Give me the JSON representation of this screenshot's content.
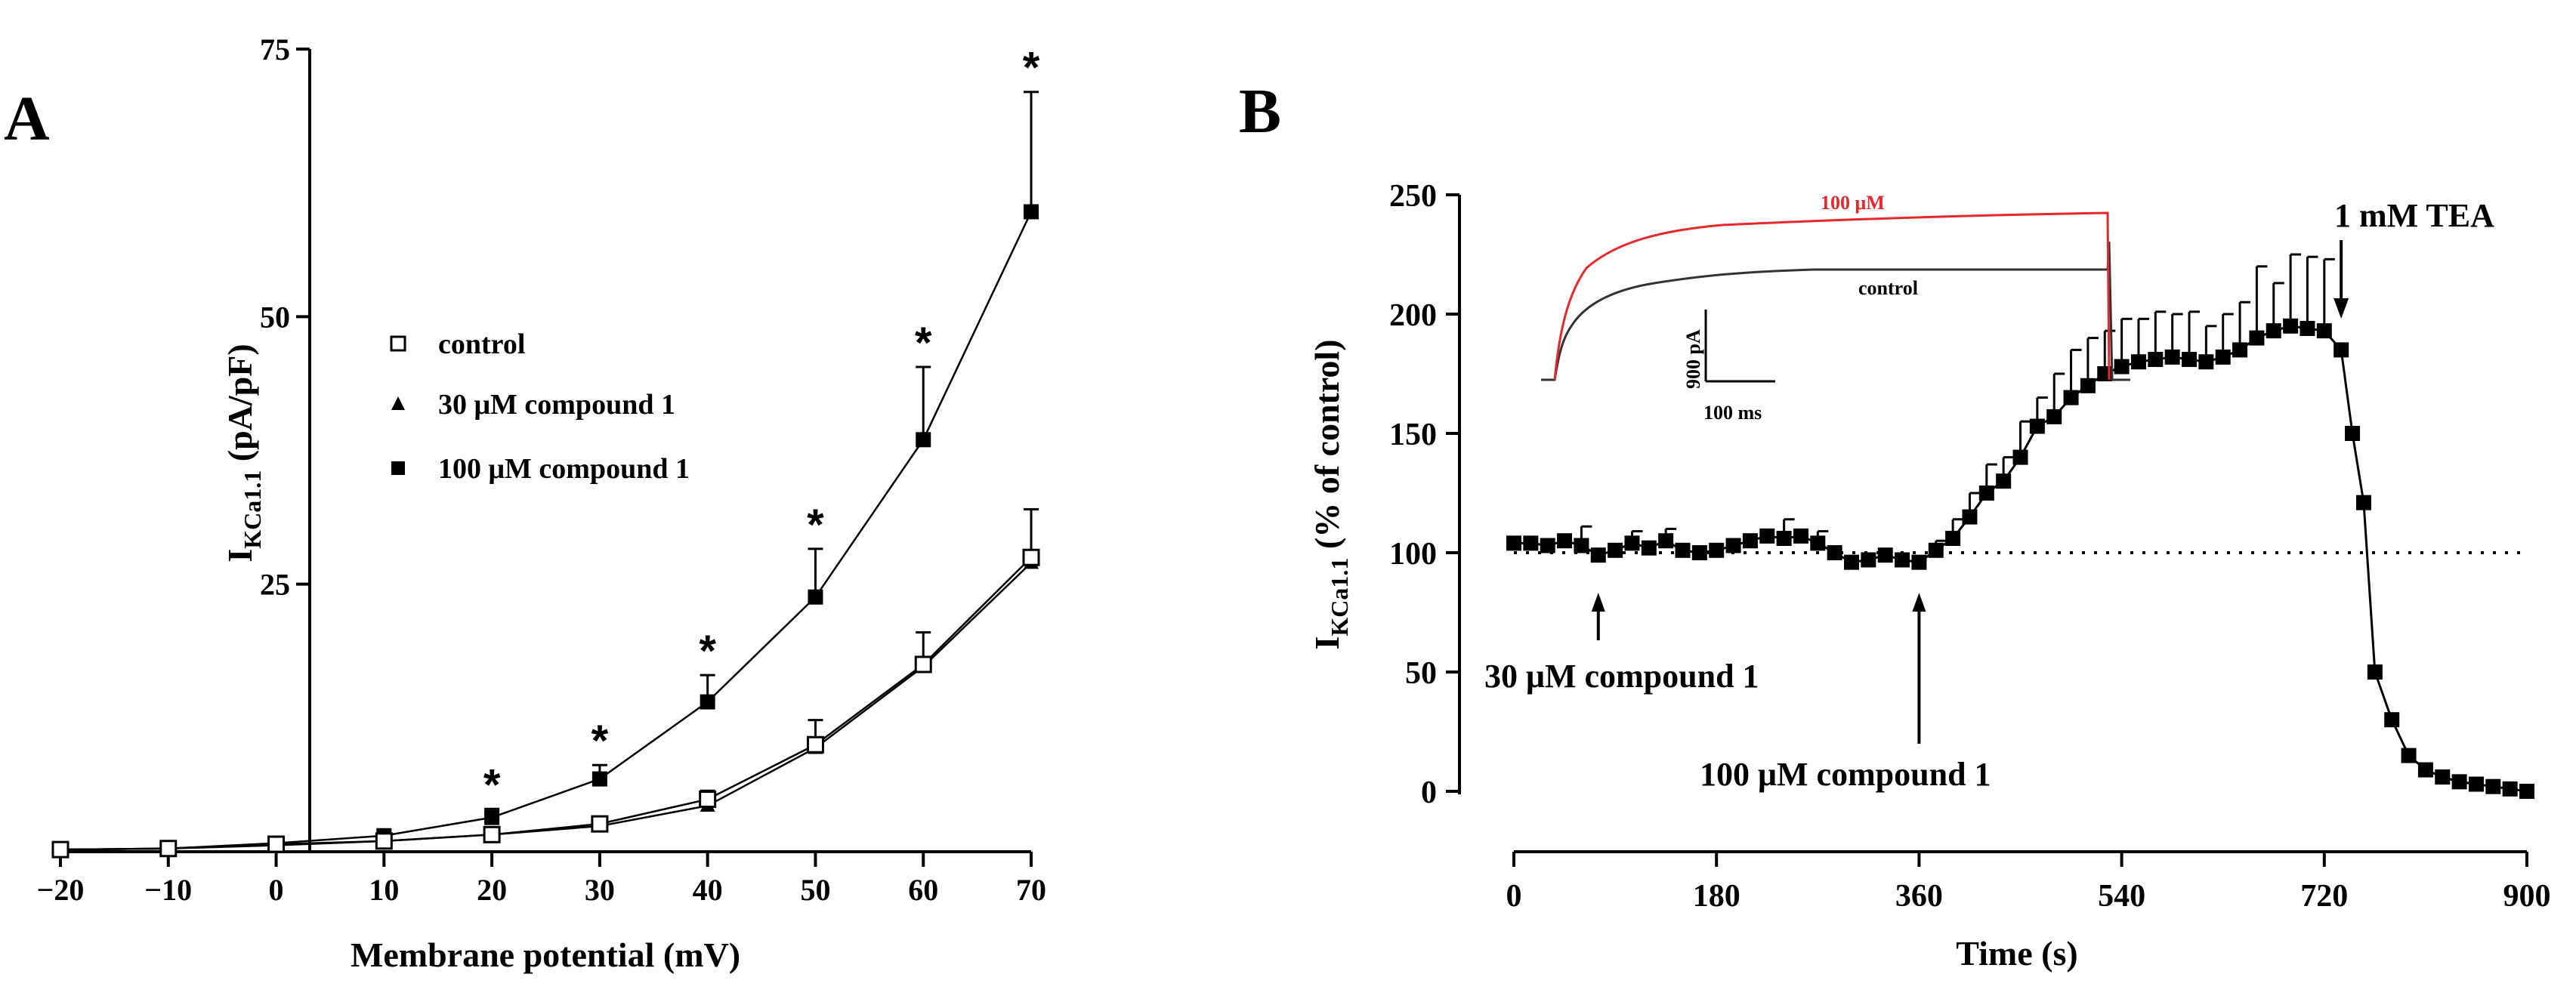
{
  "chart_data": [
    {
      "panel": "A",
      "type": "line",
      "xlabel": "Membrane potential (mV)",
      "ylabel_main": "I",
      "ylabel_sub": "KCa1.1",
      "ylabel_unit": "(pA/pF)",
      "xlim": [
        -20,
        70
      ],
      "ylim": [
        0,
        75
      ],
      "x": [
        -20,
        -10,
        0,
        10,
        20,
        30,
        40,
        50,
        60,
        70
      ],
      "xticks": [
        "−20",
        "−10",
        "0",
        "10",
        "20",
        "30",
        "40",
        "50",
        "60",
        "70"
      ],
      "yticks": [
        {
          "value": 25,
          "label": "25"
        },
        {
          "value": 50,
          "label": "50"
        },
        {
          "value": 75,
          "label": "75"
        }
      ],
      "series": [
        {
          "name": "control",
          "marker": "open-square",
          "values": [
            0.2,
            0.3,
            0.7,
            1.0,
            1.6,
            2.6,
            4.9,
            10.0,
            17.5,
            27.5
          ],
          "err": [
            0,
            0,
            0,
            0,
            0,
            0.5,
            0.8,
            2.3,
            3.0,
            4.5
          ]
        },
        {
          "name": "30 μM compound 1",
          "marker": "filled-triangle",
          "values": [
            0.2,
            0.3,
            0.6,
            1.0,
            1.6,
            2.4,
            4.3,
            9.7,
            17.3,
            27.0
          ],
          "err": [
            0,
            0,
            0,
            0,
            0,
            0,
            0,
            0,
            0,
            0
          ]
        },
        {
          "name": "100 μM compound 1",
          "marker": "filled-square",
          "values": [
            0.2,
            0.3,
            0.8,
            1.5,
            3.2,
            6.8,
            14.0,
            23.8,
            38.5,
            59.8
          ],
          "err": [
            0,
            0,
            0,
            0,
            0.8,
            1.3,
            2.5,
            4.5,
            6.8,
            11.2
          ]
        }
      ],
      "significance_marker": "*",
      "significance_x": [
        20,
        30,
        40,
        50,
        60,
        70
      ],
      "legend": [
        "control",
        "30 μM compound 1",
        "100 μM compound 1"
      ],
      "legend_position": "center-left"
    },
    {
      "panel": "B",
      "type": "line",
      "xlabel": "Time (s)",
      "ylabel_main": "I",
      "ylabel_sub": "KCa1.1",
      "ylabel_unit": "(% of control)",
      "xlim": [
        0,
        900
      ],
      "ylim": [
        0,
        250
      ],
      "xticks": [
        "0",
        "180",
        "360",
        "540",
        "720",
        "900"
      ],
      "yticks": [
        "0",
        "50",
        "100",
        "150",
        "200",
        "250"
      ],
      "reference_line": 100,
      "x": [
        0,
        15,
        30,
        45,
        60,
        75,
        90,
        105,
        120,
        135,
        150,
        165,
        180,
        195,
        210,
        225,
        240,
        255,
        270,
        285,
        300,
        315,
        330,
        345,
        360,
        375,
        390,
        405,
        420,
        435,
        450,
        465,
        480,
        495,
        510,
        525,
        540,
        555,
        570,
        585,
        600,
        615,
        630,
        645,
        660,
        675,
        690,
        705,
        720,
        735,
        745,
        755,
        765,
        780,
        795,
        810,
        825,
        840,
        855,
        870,
        885,
        900
      ],
      "values": [
        104,
        104,
        103,
        105,
        103,
        99,
        101,
        104,
        102,
        105,
        101,
        100,
        101,
        103,
        105,
        107,
        106,
        107,
        104,
        100,
        96,
        97,
        99,
        97,
        96,
        101,
        106,
        115,
        125,
        130,
        140,
        153,
        157,
        165,
        170,
        175,
        178,
        180,
        181,
        182,
        181,
        180,
        182,
        185,
        190,
        193,
        195,
        194,
        193,
        185,
        150,
        121,
        50,
        30,
        15,
        9,
        6,
        4,
        3,
        2,
        1,
        0
      ],
      "err": [
        0,
        0,
        0,
        0,
        8,
        0,
        0,
        5,
        0,
        5,
        0,
        0,
        0,
        0,
        0,
        0,
        8,
        0,
        5,
        0,
        0,
        0,
        0,
        0,
        0,
        4,
        8,
        10,
        12,
        10,
        15,
        12,
        18,
        20,
        20,
        18,
        20,
        18,
        20,
        18,
        20,
        15,
        18,
        20,
        30,
        20,
        30,
        30,
        30,
        0,
        0,
        0,
        0,
        0,
        0,
        0,
        0,
        0,
        0,
        0,
        0,
        0
      ],
      "annotations": [
        {
          "text": "30 μM compound 1",
          "x": 75
        },
        {
          "text": "100 μM compound 1",
          "x": 360
        },
        {
          "text": "1 mM TEA",
          "x": 735
        }
      ],
      "inset": {
        "traces": [
          "100 μM",
          "control"
        ],
        "colors": {
          "100 μM": "#e8272b",
          "control": "#333333"
        },
        "scale_current": "900 pA",
        "scale_time": "100 ms"
      }
    }
  ]
}
